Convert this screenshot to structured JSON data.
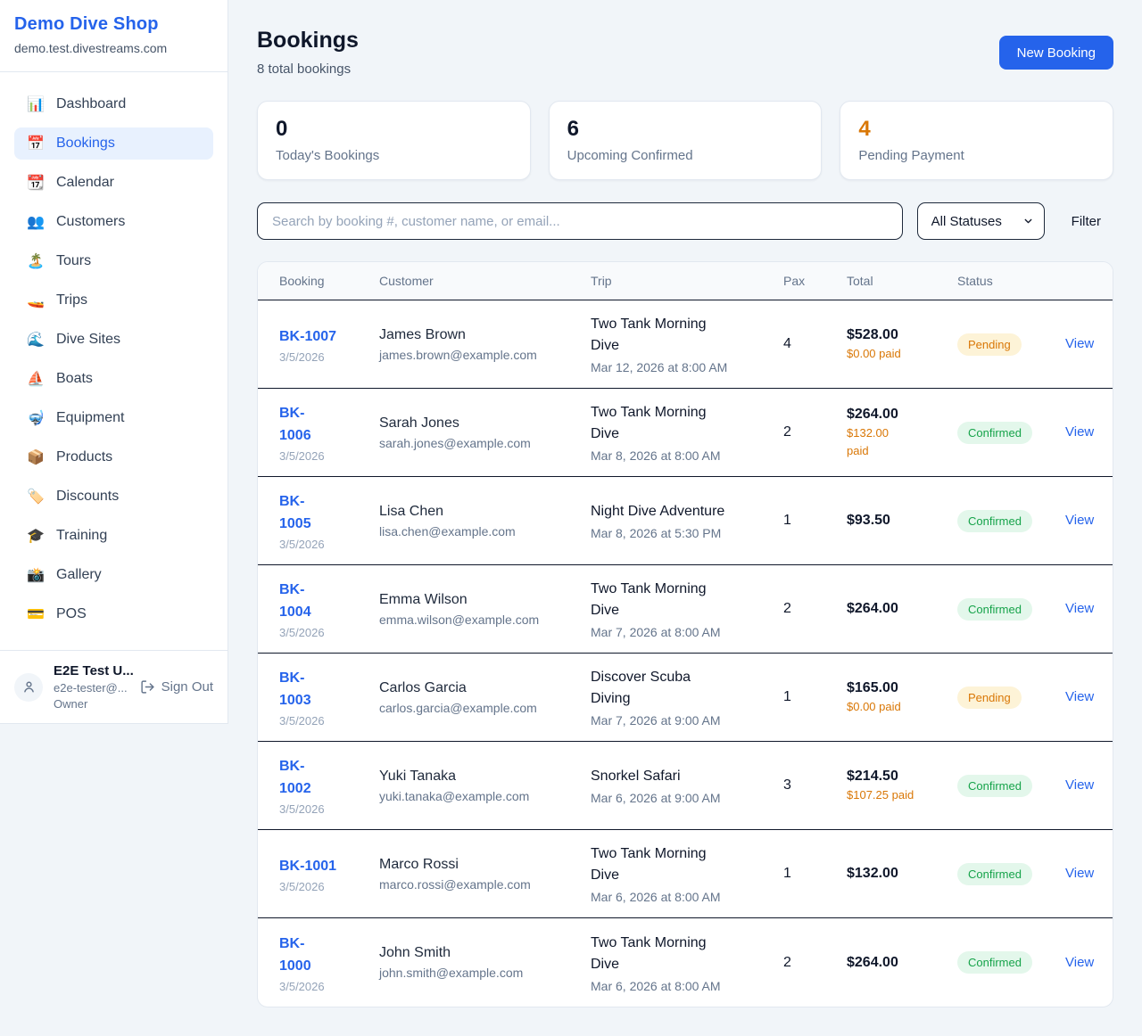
{
  "colors": {
    "accent": "#2563eb",
    "pending": "#d97706",
    "confirmed": "#16a34a"
  },
  "sidebar": {
    "brand": {
      "name": "Demo Dive Shop",
      "domain": "demo.test.divestreams.com"
    },
    "items": [
      {
        "label": "Dashboard",
        "icon": "📊",
        "icon_name": "bar-chart-icon",
        "active": false
      },
      {
        "label": "Bookings",
        "icon": "📅",
        "icon_name": "calendar-icon",
        "active": true
      },
      {
        "label": "Calendar",
        "icon": "📆",
        "icon_name": "tear-off-calendar-icon",
        "active": false
      },
      {
        "label": "Customers",
        "icon": "👥",
        "icon_name": "people-icon",
        "active": false
      },
      {
        "label": "Tours",
        "icon": "🏝️",
        "icon_name": "island-icon",
        "active": false
      },
      {
        "label": "Trips",
        "icon": "🚤",
        "icon_name": "speedboat-icon",
        "active": false
      },
      {
        "label": "Dive Sites",
        "icon": "🌊",
        "icon_name": "wave-icon",
        "active": false
      },
      {
        "label": "Boats",
        "icon": "⛵",
        "icon_name": "sailboat-icon",
        "active": false
      },
      {
        "label": "Equipment",
        "icon": "🤿",
        "icon_name": "diving-mask-icon",
        "active": false
      },
      {
        "label": "Products",
        "icon": "📦",
        "icon_name": "package-icon",
        "active": false
      },
      {
        "label": "Discounts",
        "icon": "🏷️",
        "icon_name": "tag-icon",
        "active": false
      },
      {
        "label": "Training",
        "icon": "🎓",
        "icon_name": "graduation-cap-icon",
        "active": false
      },
      {
        "label": "Gallery",
        "icon": "📸",
        "icon_name": "camera-icon",
        "active": false
      },
      {
        "label": "POS",
        "icon": "💳",
        "icon_name": "credit-card-icon",
        "active": false
      }
    ],
    "user": {
      "name": "E2E Test U...",
      "email": "e2e-tester@...",
      "role": "Owner",
      "sign_out_label": "Sign Out"
    }
  },
  "header": {
    "title": "Bookings",
    "subtitle": "8 total bookings",
    "new_booking_label": "New Booking"
  },
  "stats": [
    {
      "value": "0",
      "label": "Today's Bookings",
      "color": "#0f172a"
    },
    {
      "value": "6",
      "label": "Upcoming Confirmed",
      "color": "#0f172a"
    },
    {
      "value": "4",
      "label": "Pending Payment",
      "color": "#d97706"
    }
  ],
  "filters": {
    "search_placeholder": "Search by booking #, customer name, or email...",
    "status_select_value": "All Statuses",
    "filter_label": "Filter"
  },
  "table": {
    "columns": [
      "Booking",
      "Customer",
      "Trip",
      "Pax",
      "Total",
      "Status"
    ],
    "rows": [
      {
        "id_lines": [
          "BK-1007"
        ],
        "date": "3/5/2026",
        "customer": "James Brown",
        "email": "james.brown@example.com",
        "trip_lines": [
          "Two Tank Morning",
          "Dive"
        ],
        "trip_datetime": "Mar 12, 2026 at 8:00 AM",
        "pax": "4",
        "total": "$528.00",
        "paid_lines": [
          "$0.00 paid"
        ],
        "status": "Pending",
        "view_label": "View"
      },
      {
        "id_lines": [
          "BK-",
          "1006"
        ],
        "date": "3/5/2026",
        "customer": "Sarah Jones",
        "email": "sarah.jones@example.com",
        "trip_lines": [
          "Two Tank Morning",
          "Dive"
        ],
        "trip_datetime": "Mar 8, 2026 at 8:00 AM",
        "pax": "2",
        "total": "$264.00",
        "paid_lines": [
          "$132.00",
          "paid"
        ],
        "status": "Confirmed",
        "view_label": "View"
      },
      {
        "id_lines": [
          "BK-",
          "1005"
        ],
        "date": "3/5/2026",
        "customer": "Lisa Chen",
        "email": "lisa.chen@example.com",
        "trip_lines": [
          "Night Dive Adventure"
        ],
        "trip_datetime": "Mar 8, 2026 at 5:30 PM",
        "pax": "1",
        "total": "$93.50",
        "paid_lines": [],
        "status": "Confirmed",
        "view_label": "View"
      },
      {
        "id_lines": [
          "BK-",
          "1004"
        ],
        "date": "3/5/2026",
        "customer": "Emma Wilson",
        "email": "emma.wilson@example.com",
        "trip_lines": [
          "Two Tank Morning",
          "Dive"
        ],
        "trip_datetime": "Mar 7, 2026 at 8:00 AM",
        "pax": "2",
        "total": "$264.00",
        "paid_lines": [],
        "status": "Confirmed",
        "view_label": "View"
      },
      {
        "id_lines": [
          "BK-",
          "1003"
        ],
        "date": "3/5/2026",
        "customer": "Carlos Garcia",
        "email": "carlos.garcia@example.com",
        "trip_lines": [
          "Discover Scuba",
          "Diving"
        ],
        "trip_datetime": "Mar 7, 2026 at 9:00 AM",
        "pax": "1",
        "total": "$165.00",
        "paid_lines": [
          "$0.00 paid"
        ],
        "status": "Pending",
        "view_label": "View"
      },
      {
        "id_lines": [
          "BK-",
          "1002"
        ],
        "date": "3/5/2026",
        "customer": "Yuki Tanaka",
        "email": "yuki.tanaka@example.com",
        "trip_lines": [
          "Snorkel Safari"
        ],
        "trip_datetime": "Mar 6, 2026 at 9:00 AM",
        "pax": "3",
        "total": "$214.50",
        "paid_lines": [
          "$107.25 paid"
        ],
        "status": "Confirmed",
        "view_label": "View"
      },
      {
        "id_lines": [
          "BK-1001"
        ],
        "date": "3/5/2026",
        "customer": "Marco Rossi",
        "email": "marco.rossi@example.com",
        "trip_lines": [
          "Two Tank Morning",
          "Dive"
        ],
        "trip_datetime": "Mar 6, 2026 at 8:00 AM",
        "pax": "1",
        "total": "$132.00",
        "paid_lines": [],
        "status": "Confirmed",
        "view_label": "View"
      },
      {
        "id_lines": [
          "BK-",
          "1000"
        ],
        "date": "3/5/2026",
        "customer": "John Smith",
        "email": "john.smith@example.com",
        "trip_lines": [
          "Two Tank Morning",
          "Dive"
        ],
        "trip_datetime": "Mar 6, 2026 at 8:00 AM",
        "pax": "2",
        "total": "$264.00",
        "paid_lines": [],
        "status": "Confirmed",
        "view_label": "View"
      }
    ]
  }
}
